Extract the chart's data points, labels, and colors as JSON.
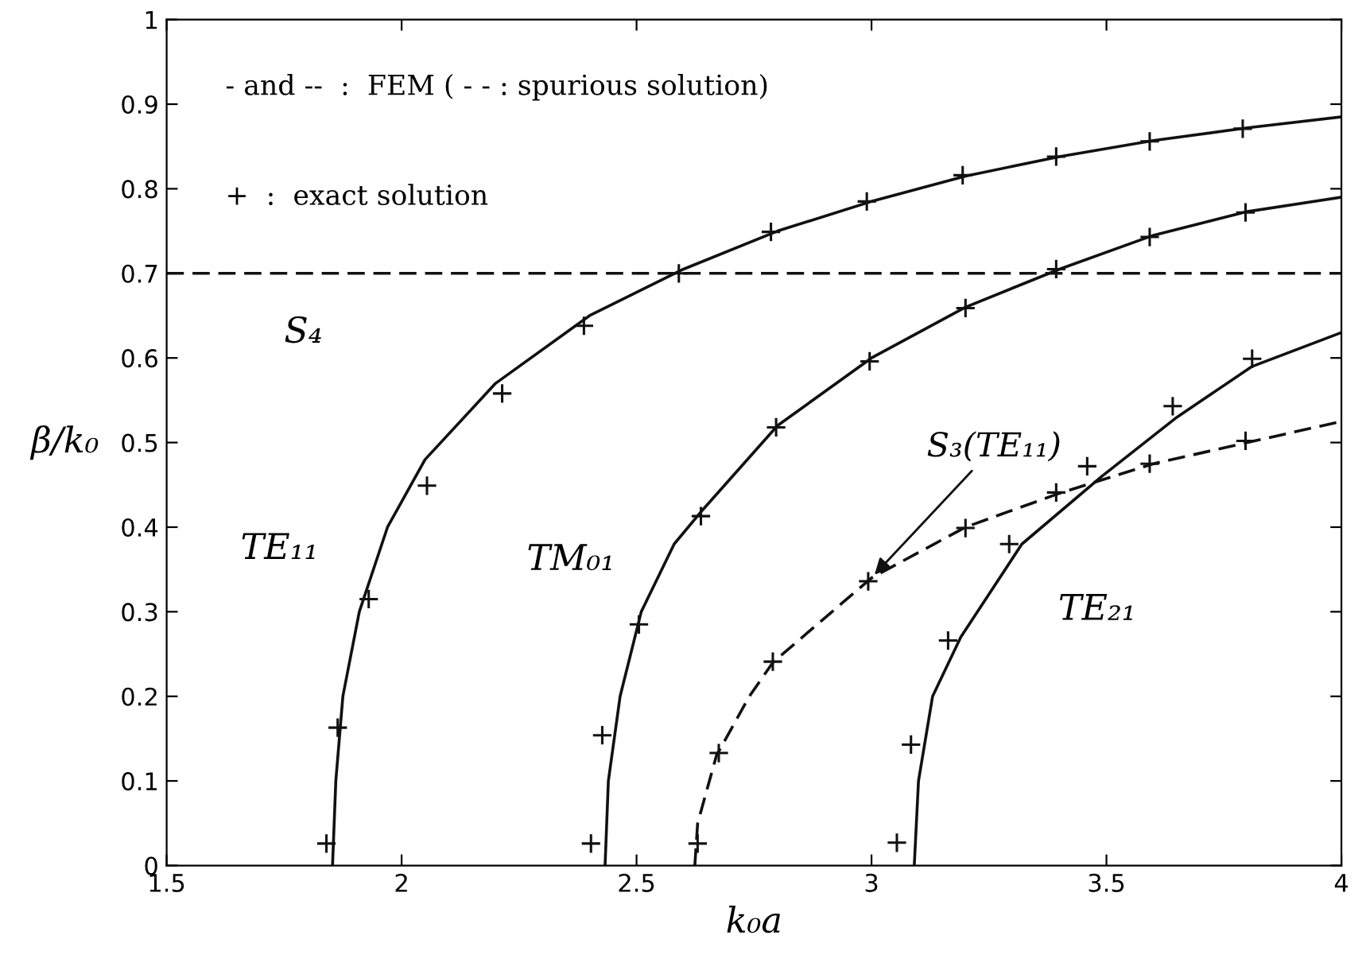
{
  "chart_data": {
    "type": "line",
    "xlabel": "k₀a",
    "ylabel": "β/k₀",
    "xlim": [
      1.5,
      4
    ],
    "ylim": [
      0,
      1
    ],
    "xticks": [
      1.5,
      2,
      2.5,
      3,
      3.5,
      4
    ],
    "yticks": [
      0,
      0.1,
      0.2,
      0.3,
      0.4,
      0.5,
      0.6,
      0.7,
      0.8,
      0.9,
      1
    ],
    "grid": false,
    "legend": false,
    "series": [
      {
        "line_style": "solid",
        "marker": "none",
        "color": "#111111",
        "x": [
          1.853,
          1.86,
          1.875,
          1.91,
          1.97,
          2.05,
          2.2,
          2.4,
          2.6,
          2.8,
          3.0,
          3.2,
          3.4,
          3.6,
          3.8,
          4.0
        ],
        "values": [
          0,
          0.1,
          0.2,
          0.3,
          0.4,
          0.48,
          0.57,
          0.65,
          0.705,
          0.75,
          0.785,
          0.815,
          0.838,
          0.857,
          0.872,
          0.885
        ]
      },
      {
        "line_style": "solid",
        "marker": "none",
        "color": "#111111",
        "x": [
          2.433,
          2.44,
          2.465,
          2.51,
          2.58,
          2.64,
          2.8,
          3.0,
          3.2,
          3.4,
          3.6,
          3.8,
          4.0
        ],
        "values": [
          0,
          0.1,
          0.2,
          0.3,
          0.38,
          0.42,
          0.52,
          0.6,
          0.66,
          0.705,
          0.745,
          0.773,
          0.79
        ]
      },
      {
        "line_style": "solid",
        "marker": "none",
        "color": "#111111",
        "x": [
          3.091,
          3.1,
          3.13,
          3.19,
          3.32,
          3.49,
          3.65,
          3.81,
          4.0
        ],
        "values": [
          0,
          0.1,
          0.2,
          0.27,
          0.38,
          0.46,
          0.53,
          0.59,
          0.63
        ]
      },
      {
        "line_style": "dashed",
        "marker": "none",
        "color": "#111111",
        "name": "S₃(TE₁₁)",
        "x": [
          2.624,
          2.63,
          2.67,
          2.74,
          2.79,
          3.0,
          3.2,
          3.4,
          3.6,
          3.8,
          4.0
        ],
        "values": [
          0,
          0.05,
          0.13,
          0.2,
          0.24,
          0.34,
          0.4,
          0.44,
          0.475,
          0.5,
          0.525
        ]
      },
      {
        "type": "scatter",
        "marker": "cross",
        "color": "#111111",
        "x": [
          1.84,
          1.864,
          1.93,
          2.054,
          2.214,
          2.388,
          2.59,
          2.786,
          2.99,
          3.194,
          3.393,
          3.592,
          3.79
        ],
        "values": [
          0.026,
          0.163,
          0.315,
          0.449,
          0.558,
          0.638,
          0.7,
          0.749,
          0.785,
          0.816,
          0.838,
          0.856,
          0.871
        ]
      },
      {
        "type": "scatter",
        "marker": "cross",
        "color": "#111111",
        "x": [
          2.403,
          2.427,
          2.505,
          2.637,
          2.797,
          2.996,
          3.2,
          3.393,
          3.592,
          3.796
        ],
        "values": [
          0.026,
          0.154,
          0.285,
          0.413,
          0.518,
          0.596,
          0.659,
          0.705,
          0.743,
          0.772
        ]
      },
      {
        "type": "scatter",
        "marker": "cross",
        "color": "#111111",
        "x": [
          3.054,
          3.084,
          3.163,
          3.293,
          3.459,
          3.641,
          3.81
        ],
        "values": [
          0.027,
          0.143,
          0.266,
          0.38,
          0.472,
          0.543,
          0.599
        ]
      },
      {
        "type": "scatter",
        "marker": "cross",
        "color": "#111111",
        "x": [
          2.63,
          2.675,
          2.79,
          2.993,
          3.2,
          3.393,
          3.592,
          3.796
        ],
        "values": [
          0.026,
          0.133,
          0.241,
          0.336,
          0.399,
          0.441,
          0.475,
          0.502
        ]
      }
    ],
    "ref_lines": [
      {
        "axis": "y",
        "value": 0.7,
        "label": "S₄",
        "color": "#111111",
        "line_style": "dashed"
      }
    ],
    "annotations": [
      "- and --  :  FEM ( - - : spurious solution)",
      "+  :  exact solution",
      "TE₁₁",
      "TM₀₁",
      "TE₂₁"
    ]
  }
}
